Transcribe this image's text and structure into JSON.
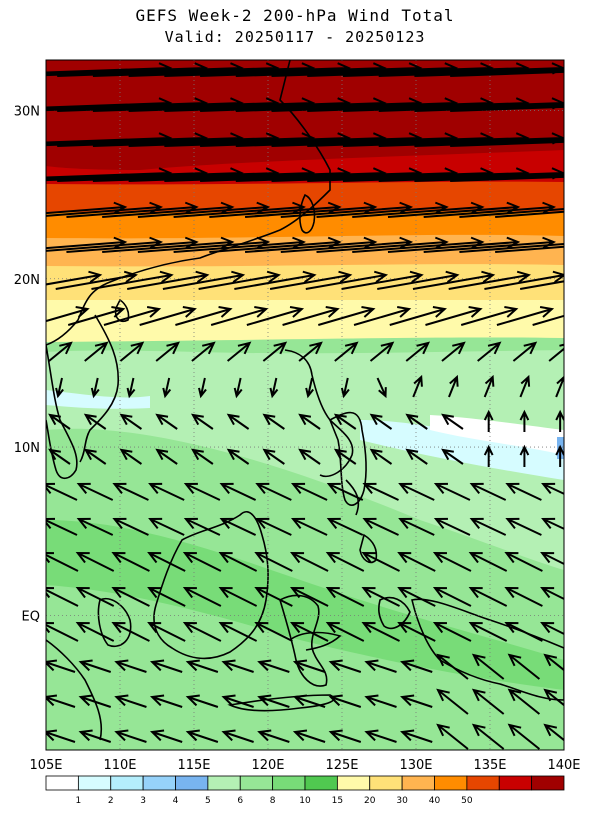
{
  "title": "GEFS Week-2 200-hPa Wind Total",
  "subtitle": "Valid: 20250117 - 20250123",
  "map": {
    "lon_range": [
      105,
      140
    ],
    "lat_range": [
      -8,
      33
    ],
    "lon_ticks": [
      {
        "value": 105,
        "label": "105E"
      },
      {
        "value": 110,
        "label": "110E"
      },
      {
        "value": 115,
        "label": "115E"
      },
      {
        "value": 120,
        "label": "120E"
      },
      {
        "value": 125,
        "label": "125E"
      },
      {
        "value": 130,
        "label": "130E"
      },
      {
        "value": 135,
        "label": "135E"
      },
      {
        "value": 140,
        "label": "140E"
      }
    ],
    "lat_ticks": [
      {
        "value": 30,
        "label": "30N"
      },
      {
        "value": 20,
        "label": "20N"
      },
      {
        "value": 10,
        "label": "10N"
      },
      {
        "value": 0,
        "label": "EQ"
      }
    ],
    "grid": true
  },
  "colorbar": {
    "colors": [
      "#ffffff",
      "#d6fcff",
      "#b4eefc",
      "#96d2fa",
      "#78b4f0",
      "#b4f0b4",
      "#96e696",
      "#78dc78",
      "#50c850",
      "#fffaaa",
      "#ffe178",
      "#ffb450",
      "#ff8c00",
      "#e64600",
      "#c80000",
      "#a00000"
    ],
    "labels": [
      "1",
      "2",
      "3",
      "4",
      "5",
      "6",
      "8",
      "10",
      "15",
      "20",
      "30",
      "40",
      "50"
    ]
  }
}
